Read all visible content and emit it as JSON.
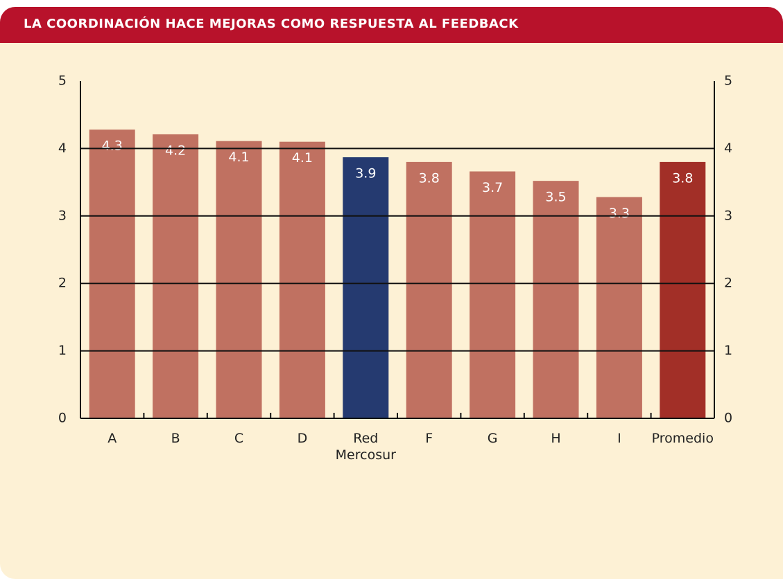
{
  "chart_data": {
    "type": "bar",
    "title": "LA COORDINACIÓN HACE MEJORAS COMO RESPUESTA AL FEEDBACK",
    "categories": [
      "A",
      "B",
      "C",
      "D",
      "Red Mercosur",
      "F",
      "G",
      "H",
      "I",
      "Promedio"
    ],
    "values": [
      4.28,
      4.21,
      4.11,
      4.1,
      3.87,
      3.8,
      3.66,
      3.52,
      3.28,
      3.8
    ],
    "value_labels": [
      "4.3",
      "4.2",
      "4.1",
      "4.1",
      "3.9",
      "3.8",
      "3.7",
      "3.5",
      "3.3",
      "3.8"
    ],
    "colors": [
      "#c07161",
      "#c07161",
      "#c07161",
      "#c07161",
      "#253a70",
      "#c07161",
      "#c07161",
      "#c07161",
      "#c07161",
      "#a22f27"
    ],
    "ylim": [
      0,
      5
    ],
    "yticks": [
      0,
      1,
      2,
      3,
      4,
      5
    ],
    "grid": true
  }
}
